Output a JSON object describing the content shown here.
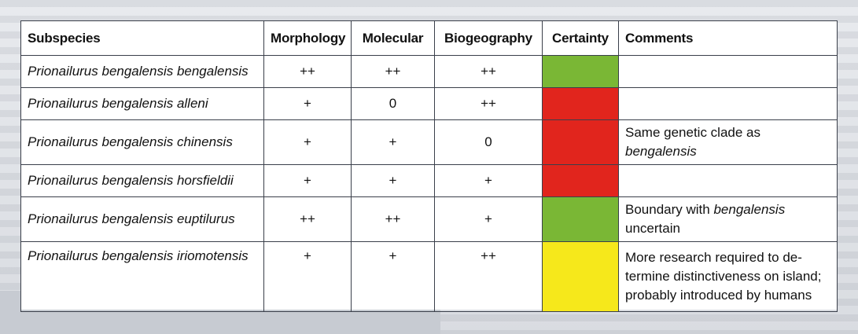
{
  "colors": {
    "green": "#7ab735",
    "red": "#e1251d",
    "yellow": "#f6e81b"
  },
  "table": {
    "headers": [
      "Subspecies",
      "Morphology",
      "Molecular",
      "Biogeography",
      "Certainty",
      "Comments"
    ],
    "rows": [
      {
        "subspecies": "Prionailurus bengalensis bengalensis",
        "morphology": "++",
        "molecular": "++",
        "biogeography": "++",
        "certainty": "green",
        "comment_line1": "",
        "comment_line2": "",
        "comment_line3": ""
      },
      {
        "subspecies": "Prionailurus bengalensis alleni",
        "morphology": "+",
        "molecular": "0",
        "biogeography": "++",
        "certainty": "red",
        "comment_line1": "",
        "comment_line2": "",
        "comment_line3": ""
      },
      {
        "subspecies": "Prionailurus bengalensis chinensis",
        "morphology": "+",
        "molecular": "+",
        "biogeography": "0",
        "certainty": "red",
        "comment_line1": "Same genetic clade as",
        "comment_line2": "bengalensis",
        "comment_line3": ""
      },
      {
        "subspecies": "Prionailurus bengalensis horsfieldii",
        "morphology": "+",
        "molecular": "+",
        "biogeography": "+",
        "certainty": "red",
        "comment_line1": "",
        "comment_line2": "",
        "comment_line3": ""
      },
      {
        "subspecies": "Prionailurus bengalensis euptilurus",
        "morphology": "++",
        "molecular": "++",
        "biogeography": "+",
        "certainty": "green",
        "comment_line1_pre": "Boundary with ",
        "comment_line1_italic": "bengalensis",
        "comment_line2": "uncertain",
        "comment_line3": ""
      },
      {
        "subspecies": "Prionailurus bengalensis iriomotensis",
        "morphology": "+",
        "molecular": "+",
        "biogeography": "++",
        "certainty": "yellow",
        "comment_line1": "More research required to de-",
        "comment_line2": "termine distinctiveness on island;",
        "comment_line3": "probably introduced by humans"
      }
    ]
  }
}
